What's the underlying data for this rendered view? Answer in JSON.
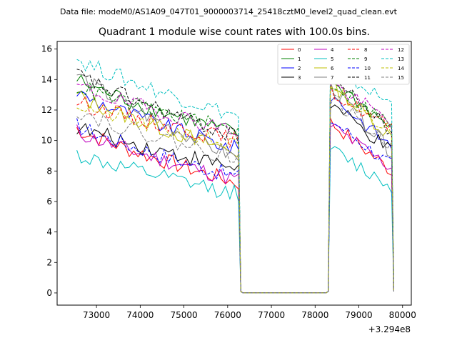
{
  "chart_data": {
    "type": "line",
    "suptitle": "Data file: modeM0/AS1A09_047T01_9000003714_25418cztM0_level2_quad_clean.evt",
    "title": "Quadrant 1 module wise count rates with 100.0s bins.",
    "xlabel": "",
    "ylabel": "",
    "x_offset_label": "+3.294e8",
    "xlim": [
      72100,
      80200
    ],
    "ylim": [
      -0.8,
      16.5
    ],
    "xticks": [
      73000,
      74000,
      75000,
      76000,
      77000,
      78000,
      79000,
      80000
    ],
    "xtick_labels": [
      "73000",
      "74000",
      "75000",
      "76000",
      "77000",
      "78000",
      "79000",
      "80000"
    ],
    "yticks": [
      0,
      2,
      4,
      6,
      8,
      10,
      12,
      14,
      16
    ],
    "ytick_labels": [
      "0",
      "2",
      "4",
      "6",
      "8",
      "10",
      "12",
      "14",
      "16"
    ],
    "grid": false,
    "legend_position": "top-right",
    "segments": [
      {
        "x_start": 72550,
        "x_end": 76250,
        "step": 100
      },
      {
        "x_start": 78350,
        "x_end": 79750,
        "step": 100
      }
    ],
    "gap": {
      "x": [
        76350,
        78250
      ],
      "value": 0
    },
    "edges": {
      "seg1_end_x": 76300,
      "seg2_start_x": 78300,
      "seg2_end_x": 79800,
      "edge_value": 0.1
    },
    "series": [
      {
        "name": "0",
        "color": "#ff0000",
        "dashed": false,
        "seg1_start": 10.8,
        "seg1_end": 7.2,
        "seg2_peak": 11.2,
        "seg2_end": 8.0
      },
      {
        "name": "1",
        "color": "#008000",
        "dashed": false,
        "seg1_start": 14.0,
        "seg1_end": 10.4,
        "seg2_peak": 14.0,
        "seg2_end": 10.8
      },
      {
        "name": "2",
        "color": "#0000ff",
        "dashed": false,
        "seg1_start": 13.2,
        "seg1_end": 9.4,
        "seg2_peak": 13.0,
        "seg2_end": 9.6
      },
      {
        "name": "3",
        "color": "#000000",
        "dashed": false,
        "seg1_start": 10.9,
        "seg1_end": 8.2,
        "seg2_peak": 12.4,
        "seg2_end": 9.2
      },
      {
        "name": "4",
        "color": "#bf00bf",
        "dashed": false,
        "seg1_start": 10.6,
        "seg1_end": 7.4,
        "seg2_peak": 11.0,
        "seg2_end": 8.2
      },
      {
        "name": "5",
        "color": "#00bfbf",
        "dashed": false,
        "seg1_start": 9.1,
        "seg1_end": 6.5,
        "seg2_peak": 9.4,
        "seg2_end": 7.0
      },
      {
        "name": "6",
        "color": "#bfbf00",
        "dashed": false,
        "seg1_start": 13.0,
        "seg1_end": 9.2,
        "seg2_peak": 13.8,
        "seg2_end": 10.2
      },
      {
        "name": "7",
        "color": "#808080",
        "dashed": false,
        "seg1_start": 14.4,
        "seg1_end": 8.8,
        "seg2_peak": 13.6,
        "seg2_end": 9.2
      },
      {
        "name": "8",
        "color": "#ff0000",
        "dashed": true,
        "seg1_start": 12.6,
        "seg1_end": 10.0,
        "seg2_peak": 13.2,
        "seg2_end": 10.8
      },
      {
        "name": "9",
        "color": "#008000",
        "dashed": true,
        "seg1_start": 13.6,
        "seg1_end": 10.6,
        "seg2_peak": 13.8,
        "seg2_end": 11.0
      },
      {
        "name": "10",
        "color": "#0000ff",
        "dashed": true,
        "seg1_start": 11.0,
        "seg1_end": 7.6,
        "seg2_peak": 11.4,
        "seg2_end": 8.4
      },
      {
        "name": "11",
        "color": "#000000",
        "dashed": true,
        "seg1_start": 14.4,
        "seg1_end": 10.2,
        "seg2_peak": 14.2,
        "seg2_end": 10.6
      },
      {
        "name": "12",
        "color": "#bf00bf",
        "dashed": true,
        "seg1_start": 13.6,
        "seg1_end": 10.6,
        "seg2_peak": 13.8,
        "seg2_end": 11.2
      },
      {
        "name": "13",
        "color": "#00bfbf",
        "dashed": true,
        "seg1_start": 15.4,
        "seg1_end": 11.6,
        "seg2_peak": 14.8,
        "seg2_end": 12.4
      },
      {
        "name": "14",
        "color": "#bfbf00",
        "dashed": true,
        "seg1_start": 12.4,
        "seg1_end": 9.6,
        "seg2_peak": 13.2,
        "seg2_end": 10.6
      },
      {
        "name": "15",
        "color": "#808080",
        "dashed": true,
        "seg1_start": 12.0,
        "seg1_end": 8.8,
        "seg2_peak": 12.8,
        "seg2_end": 9.6
      }
    ]
  }
}
